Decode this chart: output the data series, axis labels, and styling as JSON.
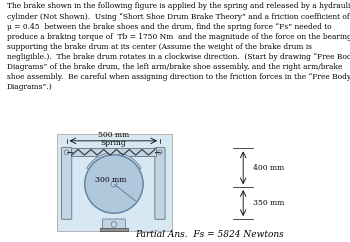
{
  "title_text": "The brake shown in the following figure is applied by the spring and released by a hydraulic\ncylinder (Not Shown).  Using “Short Shoe Drum Brake Theory” and a friction coefficient of\nμ = 0.45  between the brake shoes and the drum, find the spring force “Fs” needed to\nproduce a braking torque of  Tb = 1750 Nm  and the magnitude of the force on the bearings\nsupporting the brake drum at its center (Assume the weight of the brake drum is\nnegligible.).  The brake drum rotates in a clockwise direction.  (Start by drawing “Free Body\nDiagrams” of the brake drum, the left arm/brake shoe assembly, and the right arm/brake\nshoe assembly.  Be careful when assigning direction to the friction forces in the “Free Body\nDiagrams”.)",
  "partial_ans": "Partial Ans.  Fs = 5824 Newtons",
  "bg_color": "#ffffff",
  "fig_bg": "#d8e8f2",
  "drum_color": "#b0c8dc",
  "drum_edge": "#6080a0",
  "arm_color": "#c0d4e4",
  "arm_edge": "#708090",
  "spring_label": "Spring",
  "dim_500": "500 mm",
  "dim_400": "400 mm",
  "dim_350": "350 mm",
  "dim_300": "300 mm",
  "title_fontsize": 5.4,
  "ans_fontsize": 6.5
}
